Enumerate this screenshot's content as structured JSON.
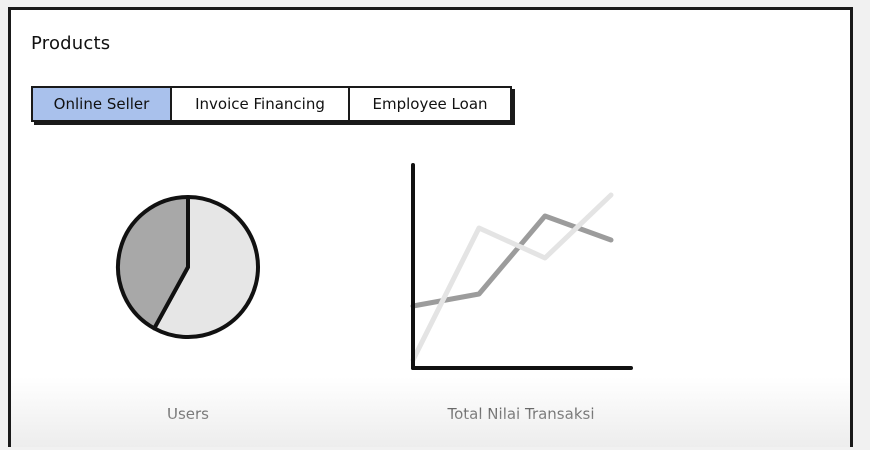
{
  "page": {
    "title": "Products"
  },
  "tabs": [
    {
      "label": "Online Seller",
      "active": true
    },
    {
      "label": "Invoice Financing",
      "active": false
    },
    {
      "label": "Employee Loan",
      "active": false
    }
  ],
  "charts": {
    "pie": {
      "caption": "Users",
      "slices": [
        {
          "value": 0.58,
          "color": "#e6e6e6"
        },
        {
          "value": 0.42,
          "color": "#a8a8a8"
        }
      ]
    },
    "line": {
      "caption": "Total Nilai Transaksi",
      "series": [
        {
          "color": "#9c9c9c",
          "values": [
            1.8,
            2.2,
            4.8,
            4.0
          ]
        },
        {
          "color": "#e4e4e4",
          "values": [
            0.0,
            4.4,
            3.4,
            5.5
          ]
        }
      ]
    }
  },
  "colors": {
    "active_tab": "#a9c1ec",
    "border": "#1a1a1a"
  }
}
